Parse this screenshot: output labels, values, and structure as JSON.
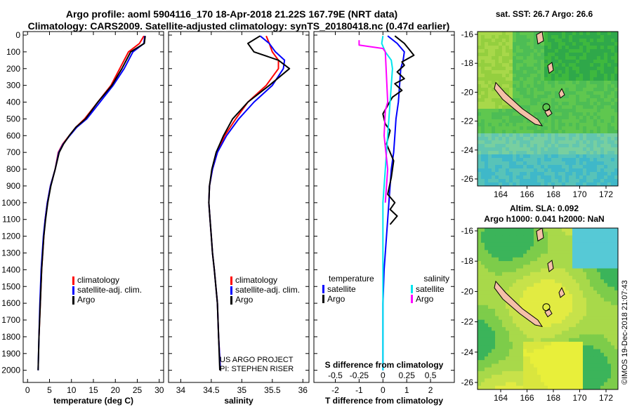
{
  "title": {
    "line1": "Argo profile: aoml 5904116_170 18-Apr-2018 21.22S 167.79E (NRT data)",
    "line2": "Climatology: CARS2009. Satellite-adjusted climatology: synTS_20180418.nc (0.47d earlier)"
  },
  "colors": {
    "climatology": "#ff0000",
    "satellite": "#0000ff",
    "argo": "#000000",
    "s_satellite": "#00e5ee",
    "s_argo": "#ff00ff"
  },
  "credit": {
    "line1": "US ARGO PROJECT",
    "line2": "PI: STEPHEN RISER"
  },
  "timestamp": "©IMOS 19-Dec-2018 21:07:43",
  "chart_data": [
    {
      "type": "line",
      "xlabel": "temperature (deg C)",
      "xticks": [
        0,
        5,
        10,
        15,
        20,
        25,
        30
      ],
      "xlim": [
        -1,
        31
      ],
      "ylim": [
        2060,
        0
      ],
      "yticks": [
        0,
        100,
        200,
        300,
        400,
        500,
        600,
        700,
        800,
        900,
        1000,
        1100,
        1200,
        1300,
        1400,
        1500,
        1600,
        1700,
        1800,
        1900,
        2000
      ],
      "legend": [
        "climatology",
        "satellite-adj. clim.",
        "Argo"
      ],
      "series": [
        {
          "name": "climatology",
          "color": "#ff0000",
          "x": [
            26.5,
            25.5,
            23,
            21,
            19,
            16,
            13,
            11,
            9.5,
            8,
            7,
            6.3,
            5.2,
            4.5,
            4,
            3.7,
            3.2,
            2.9,
            2.6
          ],
          "y": [
            5,
            50,
            100,
            200,
            300,
            400,
            500,
            550,
            600,
            650,
            700,
            800,
            900,
            1000,
            1100,
            1200,
            1400,
            1600,
            1800
          ]
        },
        {
          "name": "satellite-adj. clim.",
          "color": "#0000ff",
          "x": [
            26.7,
            26.5,
            24,
            22,
            19.5,
            16.5,
            13.5,
            11.2,
            9.6,
            8.1,
            7.1,
            6.3,
            5.2,
            4.5,
            4,
            3.6,
            3.1,
            2.8,
            2.6,
            2.4
          ],
          "y": [
            5,
            50,
            100,
            200,
            300,
            400,
            500,
            550,
            600,
            650,
            700,
            800,
            900,
            1000,
            1100,
            1200,
            1400,
            1600,
            1800,
            2000
          ]
        },
        {
          "name": "Argo",
          "color": "#000000",
          "x": [
            26.8,
            26.6,
            23.5,
            21.5,
            19.2,
            16,
            13.2,
            11,
            9.5,
            8.2,
            7.2,
            6.3,
            5.3,
            4.6,
            4.1,
            3.7,
            3.2,
            2.9,
            2.6,
            2.4
          ],
          "y": [
            5,
            50,
            100,
            200,
            300,
            400,
            500,
            550,
            600,
            650,
            700,
            800,
            900,
            1000,
            1100,
            1200,
            1400,
            1600,
            1800,
            2000
          ]
        }
      ]
    },
    {
      "type": "line",
      "xlabel": "salinity",
      "xticks": [
        34,
        34.5,
        35,
        35.5,
        36
      ],
      "xlim": [
        33.8,
        36.1
      ],
      "ylim": [
        2060,
        0
      ],
      "legend": [
        "climatology",
        "satellite-adj. clim.",
        "Argo"
      ],
      "series": [
        {
          "name": "climatology",
          "color": "#ff0000",
          "x": [
            35.4,
            35.45,
            35.5,
            35.6,
            35.6,
            35.4,
            35.1,
            34.9,
            34.72,
            34.6,
            34.52,
            34.47,
            34.46,
            34.48,
            34.5,
            34.52,
            34.55,
            34.6,
            34.62,
            34.65
          ],
          "y": [
            5,
            50,
            100,
            150,
            200,
            300,
            400,
            500,
            600,
            700,
            800,
            900,
            1000,
            1100,
            1200,
            1300,
            1400,
            1600,
            1800,
            2000
          ]
        },
        {
          "name": "satellite-adj. clim.",
          "color": "#0000ff",
          "x": [
            35.3,
            35.45,
            35.55,
            35.7,
            35.68,
            35.5,
            35.2,
            34.95,
            34.75,
            34.6,
            34.52,
            34.47,
            34.46,
            34.48,
            34.5,
            34.52,
            34.55,
            34.6,
            34.62,
            34.65
          ],
          "y": [
            5,
            50,
            100,
            150,
            200,
            300,
            400,
            500,
            600,
            700,
            800,
            900,
            1000,
            1100,
            1200,
            1300,
            1400,
            1600,
            1800,
            2000
          ]
        },
        {
          "name": "Argo",
          "color": "#000000",
          "x": [
            35.3,
            35.1,
            35.2,
            35.6,
            35.78,
            35.45,
            35.1,
            34.85,
            34.7,
            34.58,
            34.51,
            34.47,
            34.46,
            34.48,
            34.5,
            34.52,
            34.55,
            34.6,
            34.62,
            34.64
          ],
          "y": [
            5,
            50,
            100,
            150,
            200,
            300,
            400,
            500,
            600,
            700,
            800,
            900,
            1000,
            1100,
            1200,
            1300,
            1400,
            1600,
            1800,
            2000
          ]
        }
      ]
    },
    {
      "type": "line",
      "xlabel": "T difference from climatology",
      "xticks": [
        -2,
        -1,
        0,
        1,
        2
      ],
      "xlim": [
        -2.9,
        3.0
      ],
      "slabel": "S difference from climatology",
      "sticks": [
        "-0.5",
        "-0.25",
        "0",
        "0.25",
        "0.5"
      ],
      "ylim": [
        2060,
        0
      ],
      "legend_left_title": "temperature",
      "legend_right_title": "salinity",
      "legend_left": [
        "satellite",
        "Argo"
      ],
      "legend_right": [
        "satellite",
        "Argo"
      ],
      "series": [
        {
          "name": "T satellite",
          "color": "#0000ff",
          "x": [
            0.2,
            0.6,
            0.9,
            0.85,
            0.75,
            0.7,
            0.65,
            0.55,
            0.5,
            0.45,
            0.35,
            0.3,
            0.25,
            0.2,
            0.15,
            0.1,
            0.05,
            0,
            0,
            0
          ],
          "y": [
            5,
            50,
            100,
            150,
            200,
            300,
            400,
            500,
            600,
            700,
            800,
            900,
            1000,
            1100,
            1200,
            1300,
            1400,
            1600,
            1800,
            2000
          ]
        },
        {
          "name": "T Argo",
          "color": "#000000",
          "x": [
            0.5,
            0.9,
            1.3,
            0.8,
            0.9,
            0.6,
            0.9,
            0.5,
            0.8,
            0.4,
            0.2,
            0,
            0.1,
            0.3,
            0.15,
            0.3,
            0.45,
            0.35,
            0.2,
            0.5,
            0.3,
            0.6,
            0.3
          ],
          "y": [
            5,
            50,
            120,
            160,
            180,
            220,
            260,
            290,
            330,
            370,
            420,
            470,
            530,
            570,
            650,
            700,
            750,
            850,
            950,
            1000,
            1040,
            1080,
            1130
          ]
        },
        {
          "name": "S satellite",
          "color": "#00e5ee",
          "x": [
            0,
            -0.05,
            0.1,
            0.35,
            0.4,
            0.35,
            0.3,
            0.25,
            0.2,
            0.15,
            0.1,
            0.05,
            0,
            0,
            0,
            0,
            0,
            0,
            0
          ],
          "y": [
            5,
            50,
            100,
            150,
            200,
            300,
            400,
            500,
            600,
            700,
            800,
            900,
            1000,
            1100,
            1200,
            1400,
            1600,
            1800,
            2000
          ]
        },
        {
          "name": "S Argo",
          "color": "#ff00ff",
          "x": [
            -1.0,
            -1.0,
            0,
            0.1,
            0.2,
            0.1,
            0.05,
            0.2,
            0.1
          ],
          "y": [
            30,
            60,
            80,
            100,
            400,
            450,
            600,
            800,
            1000
          ]
        }
      ]
    }
  ],
  "maps": [
    {
      "title": "sat. SST: 26.7  Argo: 26.6",
      "lon_ticks": [
        "164",
        "166",
        "168",
        "170",
        "172"
      ],
      "lat_ticks": [
        "-16",
        "-18",
        "-20",
        "-22",
        "-24",
        "-26"
      ]
    },
    {
      "title": "Altim. SLA: 0.092",
      "subtitle": "Argo h1000: 0.041 h2000: NaN",
      "lon_ticks": [
        "164",
        "166",
        "168",
        "170",
        "172"
      ],
      "lat_ticks": [
        "-16",
        "-18",
        "-20",
        "-22",
        "-24",
        "-26"
      ]
    }
  ]
}
